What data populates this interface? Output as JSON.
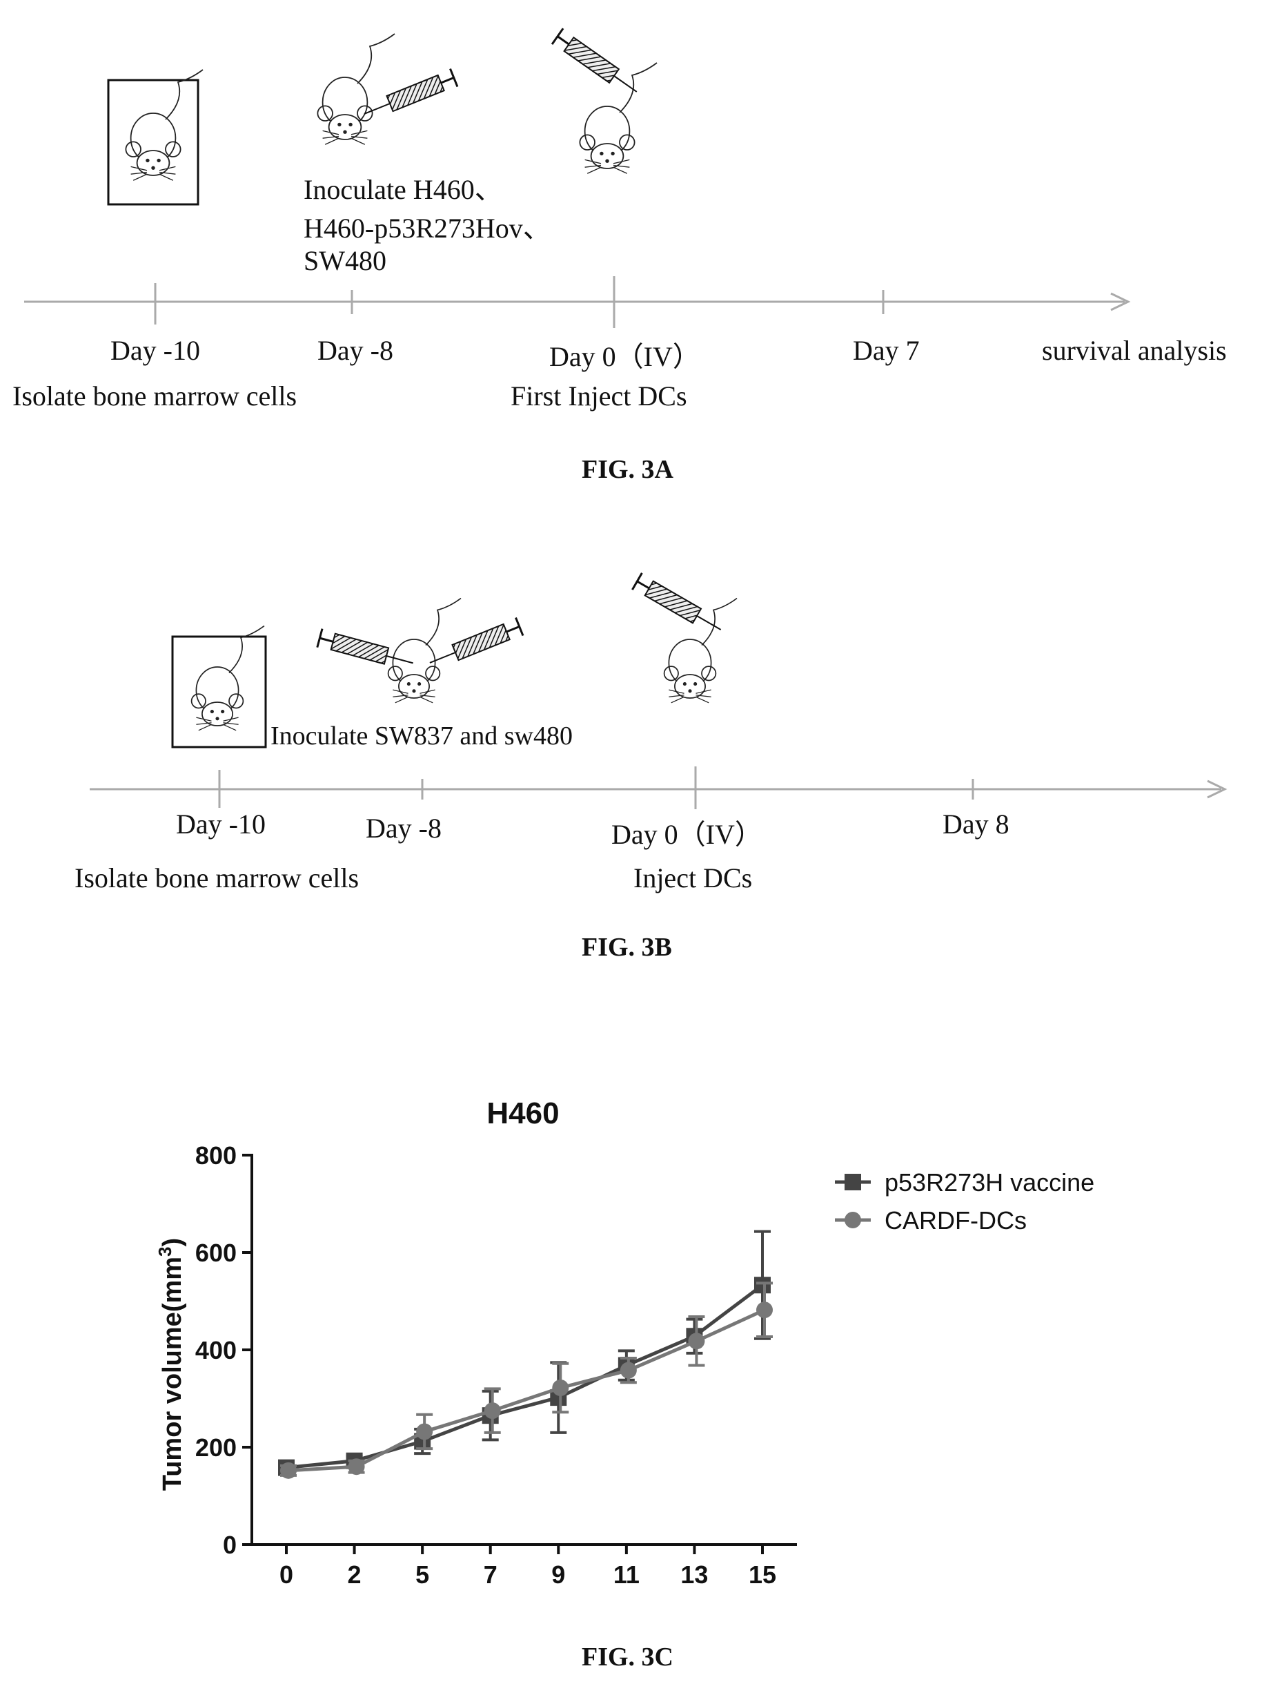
{
  "figure_3a": {
    "caption": "FIG. 3A",
    "inoculate_lines": [
      "Inoculate H460、",
      "H460-p53R273Hov、",
      "SW480"
    ],
    "timepoints": [
      "Day -10",
      "Day -8",
      "Day 0（IV）",
      "Day 7",
      "survival analysis"
    ],
    "sublabels": [
      "Isolate bone marrow cells",
      "First Inject DCs"
    ],
    "icons": [
      "mouse-icon",
      "syringe-icon"
    ]
  },
  "figure_3b": {
    "caption": "FIG. 3B",
    "inoculate_text": "Inoculate SW837 and sw480",
    "timepoints": [
      "Day -10",
      "Day -8",
      "Day 0（IV）",
      "Day 8"
    ],
    "sublabels": [
      "Isolate bone marrow cells",
      "Inject DCs"
    ],
    "icons": [
      "mouse-icon",
      "syringe-icon"
    ]
  },
  "figure_3c": {
    "caption": "FIG. 3C"
  },
  "chart_data": {
    "type": "line",
    "title": "H460",
    "xlabel": "",
    "ylabel": "Tumor volume(mm³)",
    "ylabel_main": "Tumor volume(mm",
    "ylabel_sup": "3",
    "ylabel_end": ")",
    "ylim": [
      0,
      800
    ],
    "yticks": [
      0,
      200,
      400,
      600,
      800
    ],
    "x": [
      0,
      2,
      5,
      7,
      9,
      11,
      13,
      15
    ],
    "x_tick_labels": [
      "0",
      "2",
      "5",
      "7",
      "9",
      "11",
      "13",
      "15"
    ],
    "legend_position": "top-right",
    "series": [
      {
        "name": "p53R273H vaccine",
        "marker": "square",
        "color": "#444444",
        "values": [
          158,
          172,
          212,
          265,
          302,
          368,
          428,
          533
        ],
        "errors": [
          10,
          10,
          25,
          50,
          72,
          30,
          35,
          110
        ]
      },
      {
        "name": "CARDF-DCs",
        "marker": "circle",
        "color": "#777777",
        "values": [
          152,
          160,
          232,
          275,
          322,
          358,
          418,
          482
        ],
        "errors": [
          10,
          12,
          35,
          45,
          50,
          25,
          50,
          55
        ]
      }
    ]
  }
}
